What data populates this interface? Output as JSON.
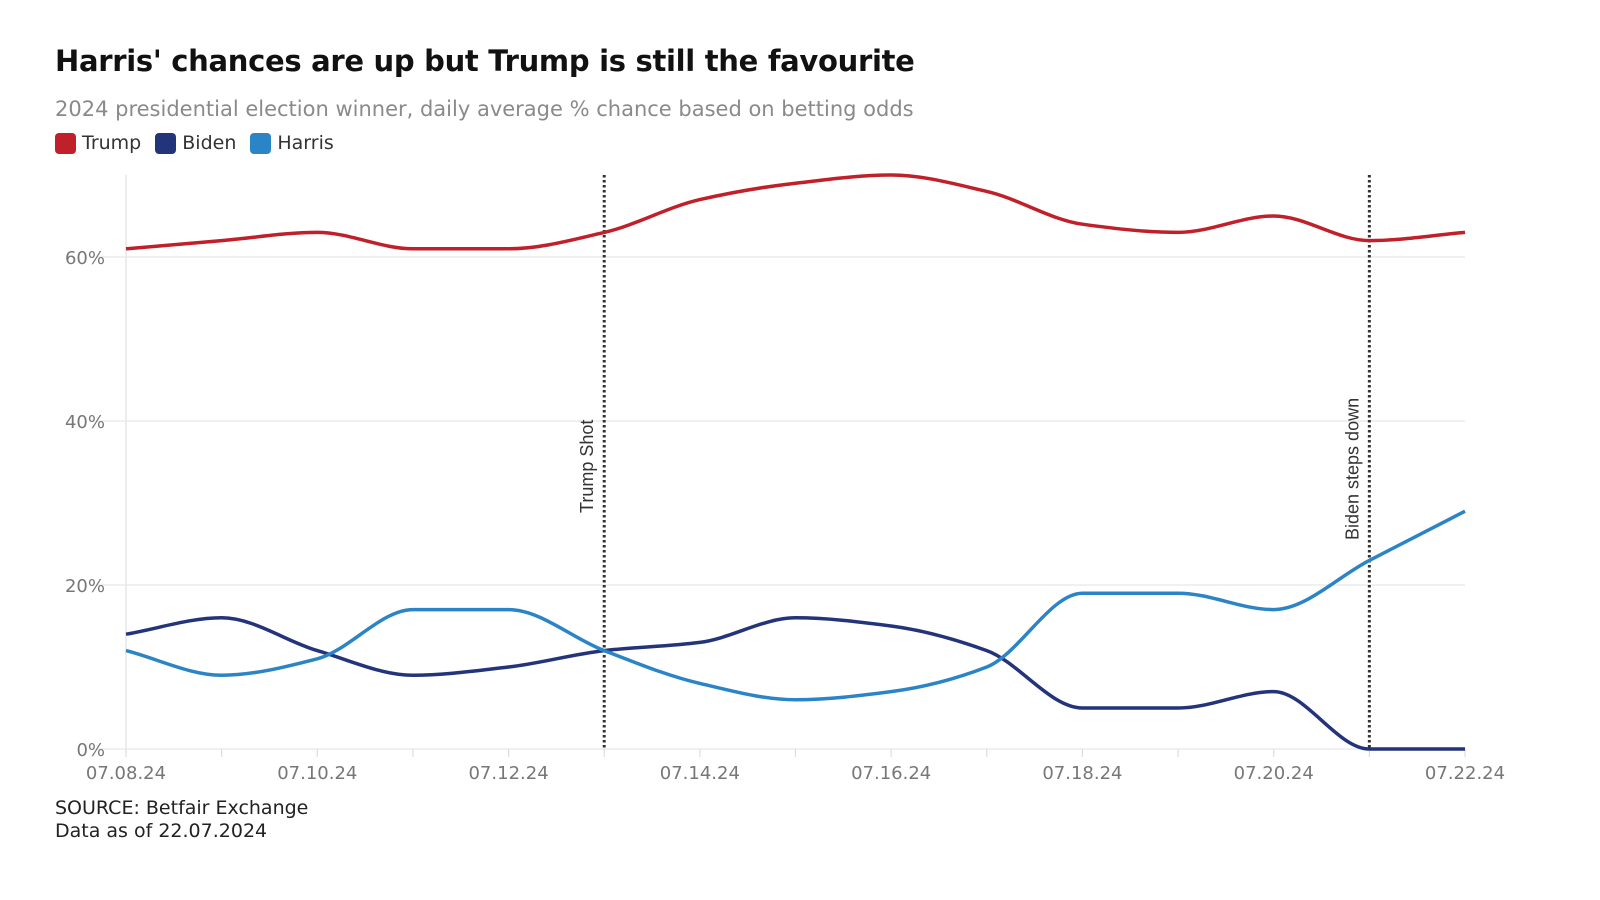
{
  "chart_data": {
    "type": "line",
    "title": "Harris' chances are up but Trump is still the favourite",
    "subtitle": "2024 presidential election winner, daily average % chance based on betting odds",
    "x": [
      "07.08.24",
      "07.09.24",
      "07.10.24",
      "07.11.24",
      "07.12.24",
      "07.13.24",
      "07.14.24",
      "07.15.24",
      "07.16.24",
      "07.17.24",
      "07.18.24",
      "07.19.24",
      "07.20.24",
      "07.21.24",
      "07.22.24"
    ],
    "x_tick_labels": [
      "07.08.24",
      "07.10.24",
      "07.12.24",
      "07.14.24",
      "07.16.24",
      "07.18.24",
      "07.20.24",
      "07.22.24"
    ],
    "y_tick_labels": [
      "0%",
      "20%",
      "40%",
      "60%"
    ],
    "y_ticks": [
      0,
      20,
      40,
      60
    ],
    "ylim": [
      0,
      70
    ],
    "grid": "horizontal",
    "legend_placement": "top-left",
    "series": [
      {
        "name": "Trump",
        "color": "#c0202a",
        "values": [
          61,
          62,
          63,
          61,
          61,
          63,
          67,
          69,
          70,
          68,
          64,
          63,
          65,
          62,
          63
        ]
      },
      {
        "name": "Biden",
        "color": "#23347a",
        "values": [
          14,
          16,
          12,
          9,
          10,
          12,
          13,
          16,
          15,
          12,
          5,
          5,
          7,
          0,
          0
        ]
      },
      {
        "name": "Harris",
        "color": "#2b84c6",
        "values": [
          12,
          9,
          11,
          17,
          17,
          12,
          8,
          6,
          7,
          10,
          19,
          19,
          17,
          23,
          29
        ]
      }
    ],
    "annotations": [
      {
        "x": "07.13.24",
        "label": "Trump Shot"
      },
      {
        "x": "07.21.24",
        "label": "Biden steps down"
      }
    ]
  },
  "footer": {
    "source": "SOURCE: Betfair Exchange",
    "data_as_of": "Data as of 22.07.2024"
  }
}
